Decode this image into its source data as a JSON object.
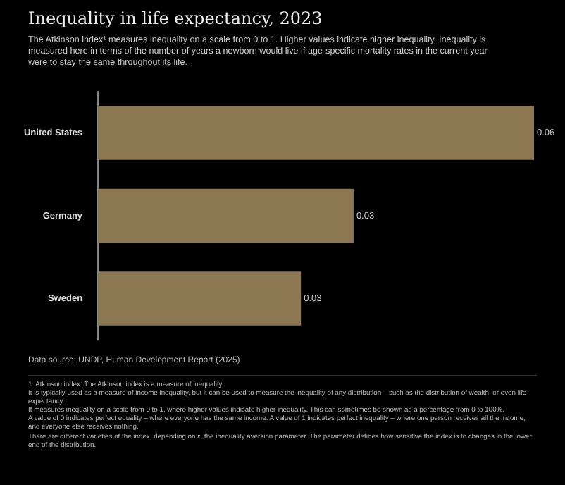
{
  "chart_data": {
    "type": "bar",
    "orientation": "horizontal",
    "title": "Inequality in life expectancy, 2023",
    "subtitle": "The Atkinson index¹ measures inequality on a scale from 0 to 1. Higher values indicate higher inequality. Inequality is measured here in terms of the number of years a newborn would live if age-specific mortality rates in the current year were to stay the same throughout its life.",
    "categories": [
      "United States",
      "Germany",
      "Sweden"
    ],
    "values": [
      0.058,
      0.034,
      0.027
    ],
    "value_labels": [
      "0.06",
      "0.03",
      "0.03"
    ],
    "color": "#8b7752",
    "annotations": [
      "Data source: UNDP, Human Development Report (2025)",
      "1. Atkinson index: The Atkinson index is a measure of inequality.",
      "It is typically used as a measure of income inequality, but it can be used to measure the inequality of any distribution – such as the distribution of wealth, or even life expectancy.",
      "It measures inequality on a scale from 0 to 1, where higher values indicate higher inequality. This can sometimes be shown as a percentage from 0 to 100%.",
      "A value of 0 indicates perfect equality – where everyone has the same income. A value of 1 indicates perfect inequality – where one person receives all the income, and everyone else receives nothing.",
      "There are different varieties of the index, depending on ε, the inequality aversion parameter. The parameter defines how sensitive the index is to changes in the lower end of the distribution."
    ]
  }
}
